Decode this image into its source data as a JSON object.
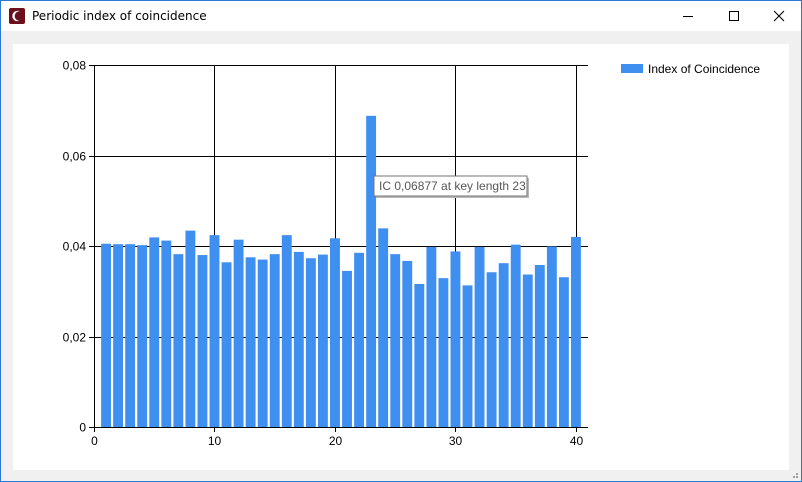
{
  "window": {
    "title": "Periodic index of coincidence",
    "icon": "crescent-app-icon",
    "controls": [
      "minimize",
      "maximize",
      "close"
    ]
  },
  "colors": {
    "bar": "#3f8ff0",
    "axis": "#000000",
    "grid": "#000000",
    "window_border": "#2b79d3"
  },
  "tooltip": {
    "text": "IC 0,06877 at key length 23"
  },
  "chart_data": {
    "type": "bar",
    "x": [
      1,
      2,
      3,
      4,
      5,
      6,
      7,
      8,
      9,
      10,
      11,
      12,
      13,
      14,
      15,
      16,
      17,
      18,
      19,
      20,
      21,
      22,
      23,
      24,
      25,
      26,
      27,
      28,
      29,
      30,
      31,
      32,
      33,
      34,
      35,
      36,
      37,
      38,
      39,
      40
    ],
    "series": [
      {
        "name": "Index of Coincidence",
        "values": [
          0.0405,
          0.0404,
          0.0404,
          0.0402,
          0.0419,
          0.0412,
          0.0382,
          0.0434,
          0.038,
          0.0424,
          0.0364,
          0.0414,
          0.0375,
          0.037,
          0.0382,
          0.0424,
          0.0387,
          0.0373,
          0.0381,
          0.0417,
          0.0345,
          0.0385,
          0.06877,
          0.0439,
          0.0382,
          0.0367,
          0.0316,
          0.0398,
          0.0329,
          0.0388,
          0.0313,
          0.0398,
          0.0342,
          0.0362,
          0.0403,
          0.0337,
          0.0358,
          0.0399,
          0.0331,
          0.042
        ]
      }
    ],
    "xlim": [
      0,
      41
    ],
    "ylim": [
      0,
      0.08
    ],
    "xticks": [
      0,
      10,
      20,
      30,
      40
    ],
    "xtick_labels": [
      "0",
      "10",
      "20",
      "30",
      "40"
    ],
    "yticks": [
      0,
      0.02,
      0.04,
      0.06,
      0.08
    ],
    "ytick_labels": [
      "0",
      "0,02",
      "0,04",
      "0,06",
      "0,08"
    ],
    "grid": true,
    "legend": "top-right",
    "title": "",
    "xlabel": "",
    "ylabel": ""
  }
}
